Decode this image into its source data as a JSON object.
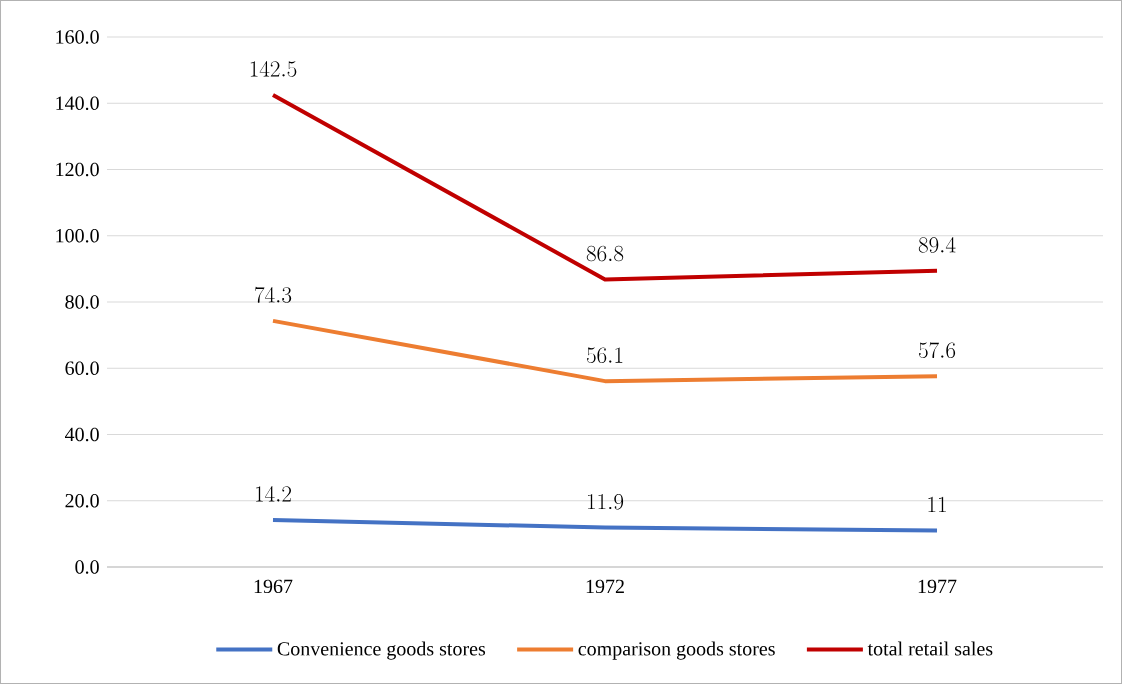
{
  "chart_data": {
    "type": "line",
    "categories": [
      "1967",
      "1972",
      "1977"
    ],
    "series": [
      {
        "name": "Convenience goods stores",
        "color": "#4472c4",
        "values": [
          14.2,
          11.9,
          11
        ]
      },
      {
        "name": "comparison goods stores",
        "color": "#ed7d31",
        "values": [
          74.3,
          56.1,
          57.6
        ]
      },
      {
        "name": "total retail sales",
        "color": "#c00000",
        "values": [
          142.5,
          86.8,
          89.4
        ]
      }
    ],
    "ylim": [
      0,
      160
    ],
    "yticks": [
      {
        "value": 0,
        "label": "0.0"
      },
      {
        "value": 20,
        "label": "20.0"
      },
      {
        "value": 40,
        "label": "40.0"
      },
      {
        "value": 60,
        "label": "60.0"
      },
      {
        "value": 80,
        "label": "80.0"
      },
      {
        "value": 100,
        "label": "100.0"
      },
      {
        "value": 120,
        "label": "120.0"
      },
      {
        "value": 140,
        "label": "140.0"
      },
      {
        "value": 160,
        "label": "160.0"
      }
    ],
    "grid": "y",
    "legend": "bottom",
    "data_labels": true,
    "marker": "none",
    "line_style": "solid"
  }
}
